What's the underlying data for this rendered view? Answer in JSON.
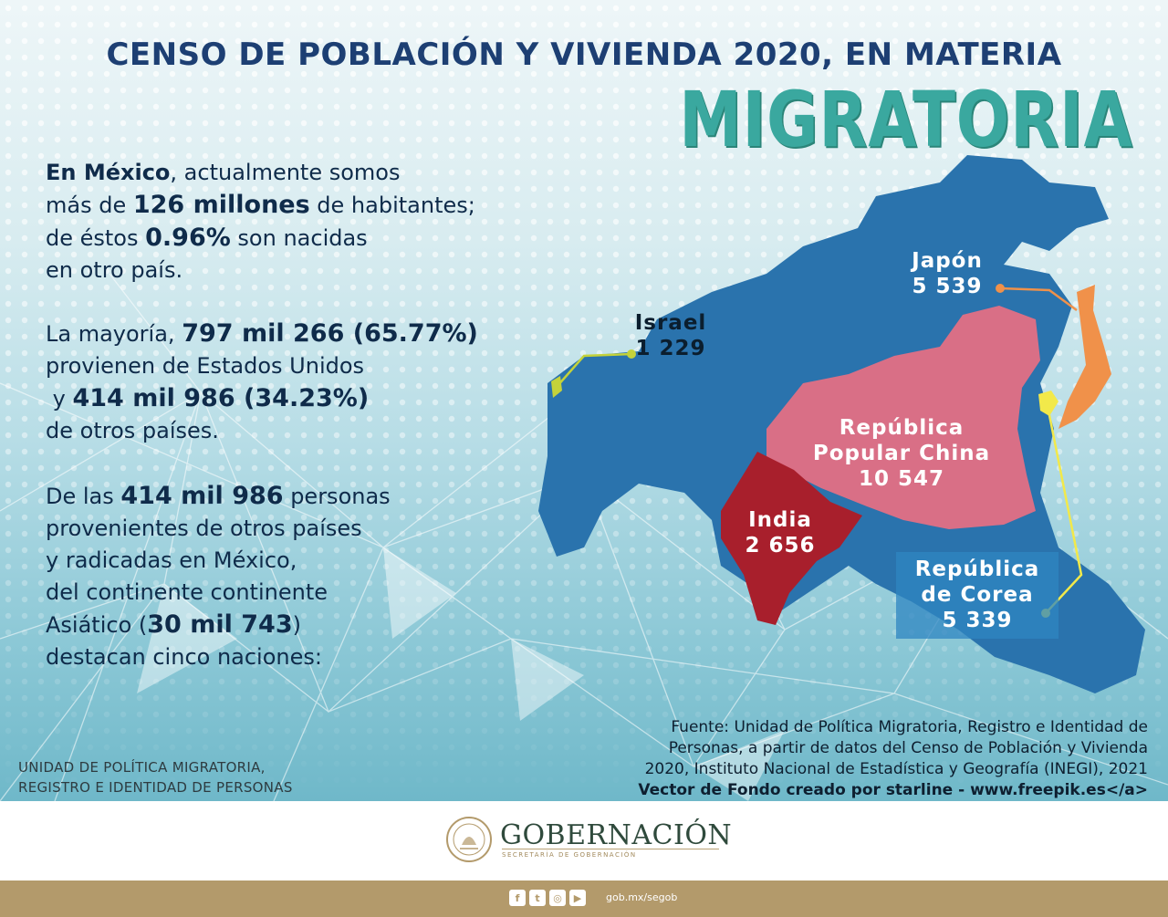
{
  "header": {
    "title": "CENSO DE POBLACIÓN Y VIVIENDA 2020, EN MATERIA",
    "subtitle": "MIGRATORIA"
  },
  "intro": {
    "p1_a": "En México",
    "p1_b": ", actualmente somos",
    "p1_c": "más de ",
    "p1_d": "126 millones",
    "p1_e": " de habitantes;",
    "p1_f": "de éstos ",
    "p1_g": "0.96%",
    "p1_h": " son nacidas",
    "p1_i": "en otro país.",
    "p2_a": "La mayoría, ",
    "p2_b": "797 mil 266 (65.77%)",
    "p2_c": "provienen de Estados Unidos",
    "p2_d": " y ",
    "p2_e": "414 mil 986 (34.23%)",
    "p2_f": "de otros países.",
    "p3_a": "De las ",
    "p3_b": "414 mil 986",
    "p3_c": " personas",
    "p3_d": "provenientes de otros países",
    "p3_e": "y radicadas en México,",
    "p3_f": "del continente continente",
    "p3_g": "Asiático (",
    "p3_h": "30 mil 743",
    "p3_i": ")",
    "p3_j": "destacan cinco naciones:"
  },
  "countries": [
    {
      "name": "Japón",
      "value": "5 539",
      "color": "#f0914a"
    },
    {
      "name": "Israel",
      "value": "1 229",
      "color": "#c4d23a"
    },
    {
      "name": "República\nPopular China",
      "value": "10 547",
      "color": "#d96f86"
    },
    {
      "name": "India",
      "value": "2 656",
      "color": "#a81f2c"
    },
    {
      "name": "República\nde Corea",
      "value": "5 339",
      "color": "#f2e94a"
    }
  ],
  "source": {
    "text": "Fuente: Unidad de Política Migratoria, Registro e Identidad de\nPersonas, a partir de datos del Censo de Población y Vivienda\n2020, Instituto Nacional de Estadística y Geografía (INEGI), 2021",
    "vector": "Vector de Fondo creado por starline - www.freepik.es</a>"
  },
  "unit": {
    "line1": "UNIDAD DE POLÍTICA MIGRATORIA,",
    "line2": "REGISTRO E IDENTIDAD DE PERSONAS"
  },
  "footer": {
    "logo": "GOBERNACIÓN",
    "logo_sub": "SECRETARÍA DE GOBERNACIÓN",
    "url": "gob.mx/segob",
    "social_icons": [
      "facebook-icon",
      "twitter-icon",
      "instagram-icon",
      "youtube-icon"
    ]
  },
  "colors": {
    "title": "#1d3f73",
    "subtitle": "#3aa89f",
    "map": "#2a73ad",
    "footer_bar": "#b39a6b"
  }
}
